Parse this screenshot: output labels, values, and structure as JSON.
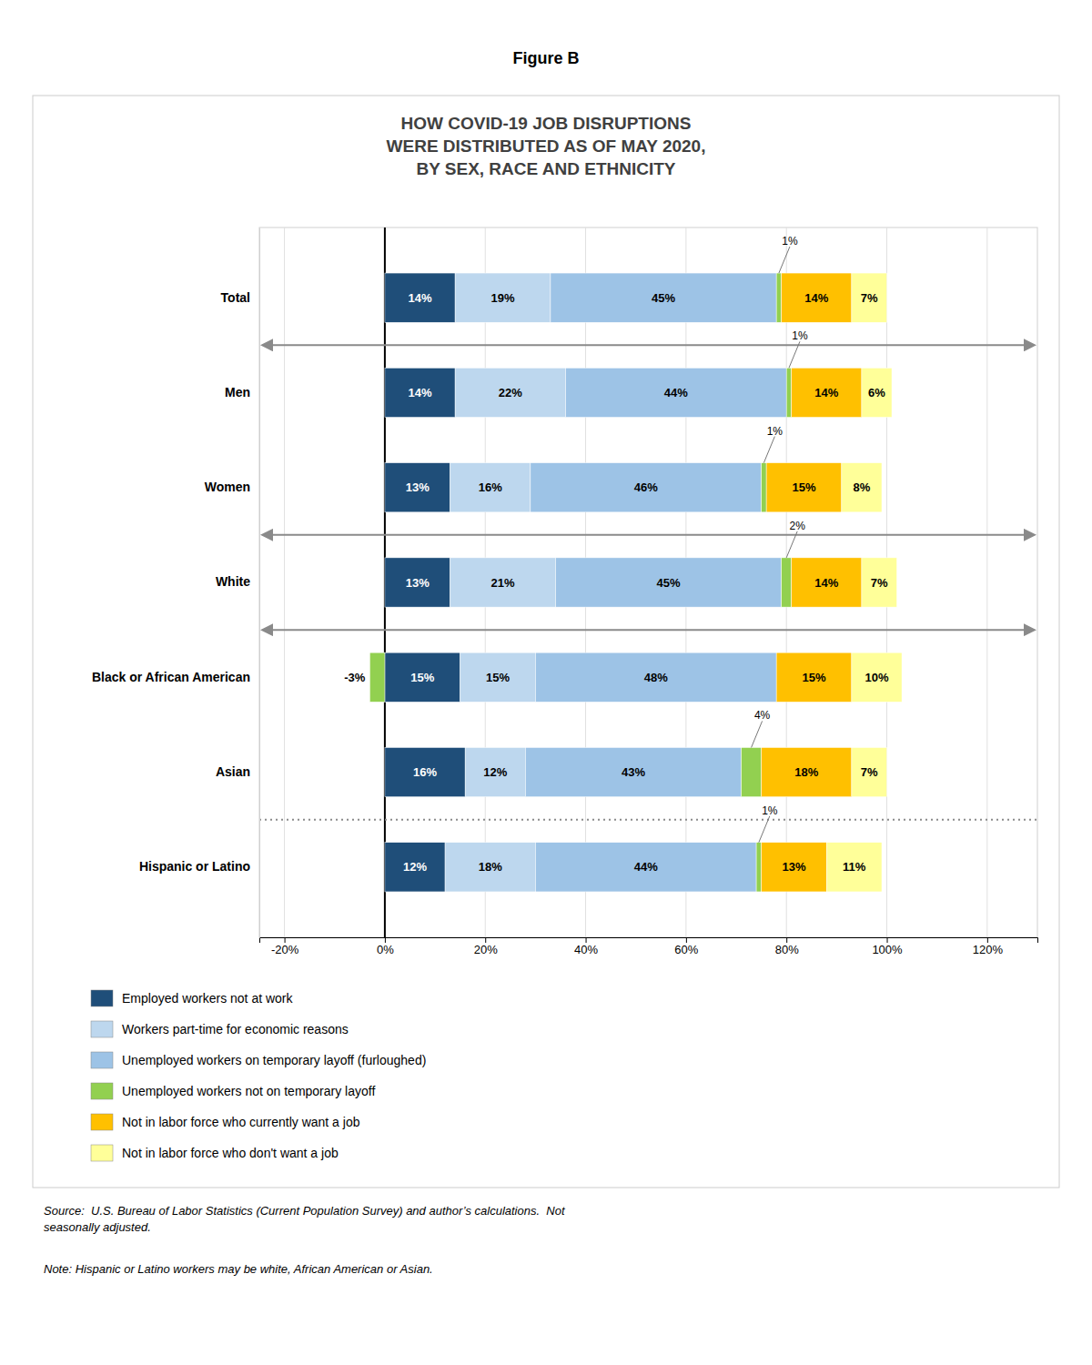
{
  "chart_data": {
    "type": "bar",
    "orientation": "horizontal",
    "stacked": true,
    "data_labels": true,
    "grid": true,
    "legend": "bottom",
    "title": "HOW COVID-19 JOB DISRUPTIONS\nWERE DISTRIBUTED AS OF MAY 2020,\nBY SEX, RACE AND ETHNICITY",
    "annotations": [
      "Figure B",
      "Source:  U.S. Bureau of Labor Statistics (Current Population Survey) and author’s calculations.  Not\nseasonally adjusted.",
      "Note: Hispanic or Latino workers may be white, African American or Asian."
    ],
    "categories": [
      "Total",
      "Men",
      "Women",
      "White",
      "Black or African American",
      "Asian",
      "Hispanic or Latino"
    ],
    "series": [
      {
        "name": "Employed workers not at work",
        "color": "#1F4E79",
        "values": [
          14,
          14,
          13,
          13,
          15,
          16,
          12
        ],
        "value_labels": [
          "14%",
          "14%",
          "13%",
          "13%",
          "15%",
          "16%",
          "12%"
        ]
      },
      {
        "name": "Workers part-time for economic reasons",
        "color": "#BDD7EE",
        "values": [
          19,
          22,
          16,
          21,
          15,
          12,
          18
        ],
        "value_labels": [
          "19%",
          "22%",
          "16%",
          "21%",
          "15%",
          "12%",
          "18%"
        ]
      },
      {
        "name": "Unemployed workers on temporary layoff (furloughed)",
        "color": "#9DC3E6",
        "values": [
          45,
          44,
          46,
          45,
          48,
          43,
          44
        ],
        "value_labels": [
          "45%",
          "44%",
          "46%",
          "45%",
          "48%",
          "43%",
          "44%"
        ]
      },
      {
        "name": "Unemployed workers not on temporary layoff",
        "color": "#92D050",
        "values": [
          1,
          1,
          1,
          2,
          -3,
          4,
          1
        ],
        "value_labels": [
          "1%",
          "1%",
          "1%",
          "2%",
          "-3%",
          "4%",
          "1%"
        ]
      },
      {
        "name": "Not in labor force who currently want a job",
        "color": "#FFC000",
        "values": [
          14,
          14,
          15,
          14,
          15,
          18,
          13
        ],
        "value_labels": [
          "14%",
          "14%",
          "15%",
          "14%",
          "15%",
          "18%",
          "13%"
        ]
      },
      {
        "name": "Not in labor force who don't want a job",
        "color": "#FFFF99",
        "values": [
          7,
          6,
          8,
          7,
          10,
          7,
          11
        ],
        "value_labels": [
          "7%",
          "6%",
          "8%",
          "7%",
          "10%",
          "7%",
          "11%"
        ]
      }
    ],
    "xlim": [
      -25,
      130
    ],
    "xticks": [
      {
        "value": -20,
        "label": "-20%"
      },
      {
        "value": 0,
        "label": "0%"
      },
      {
        "value": 20,
        "label": "20%"
      },
      {
        "value": 40,
        "label": "40%"
      },
      {
        "value": 60,
        "label": "60%"
      },
      {
        "value": 80,
        "label": "80%"
      },
      {
        "value": 100,
        "label": "100%"
      },
      {
        "value": 120,
        "label": "120%"
      }
    ]
  }
}
